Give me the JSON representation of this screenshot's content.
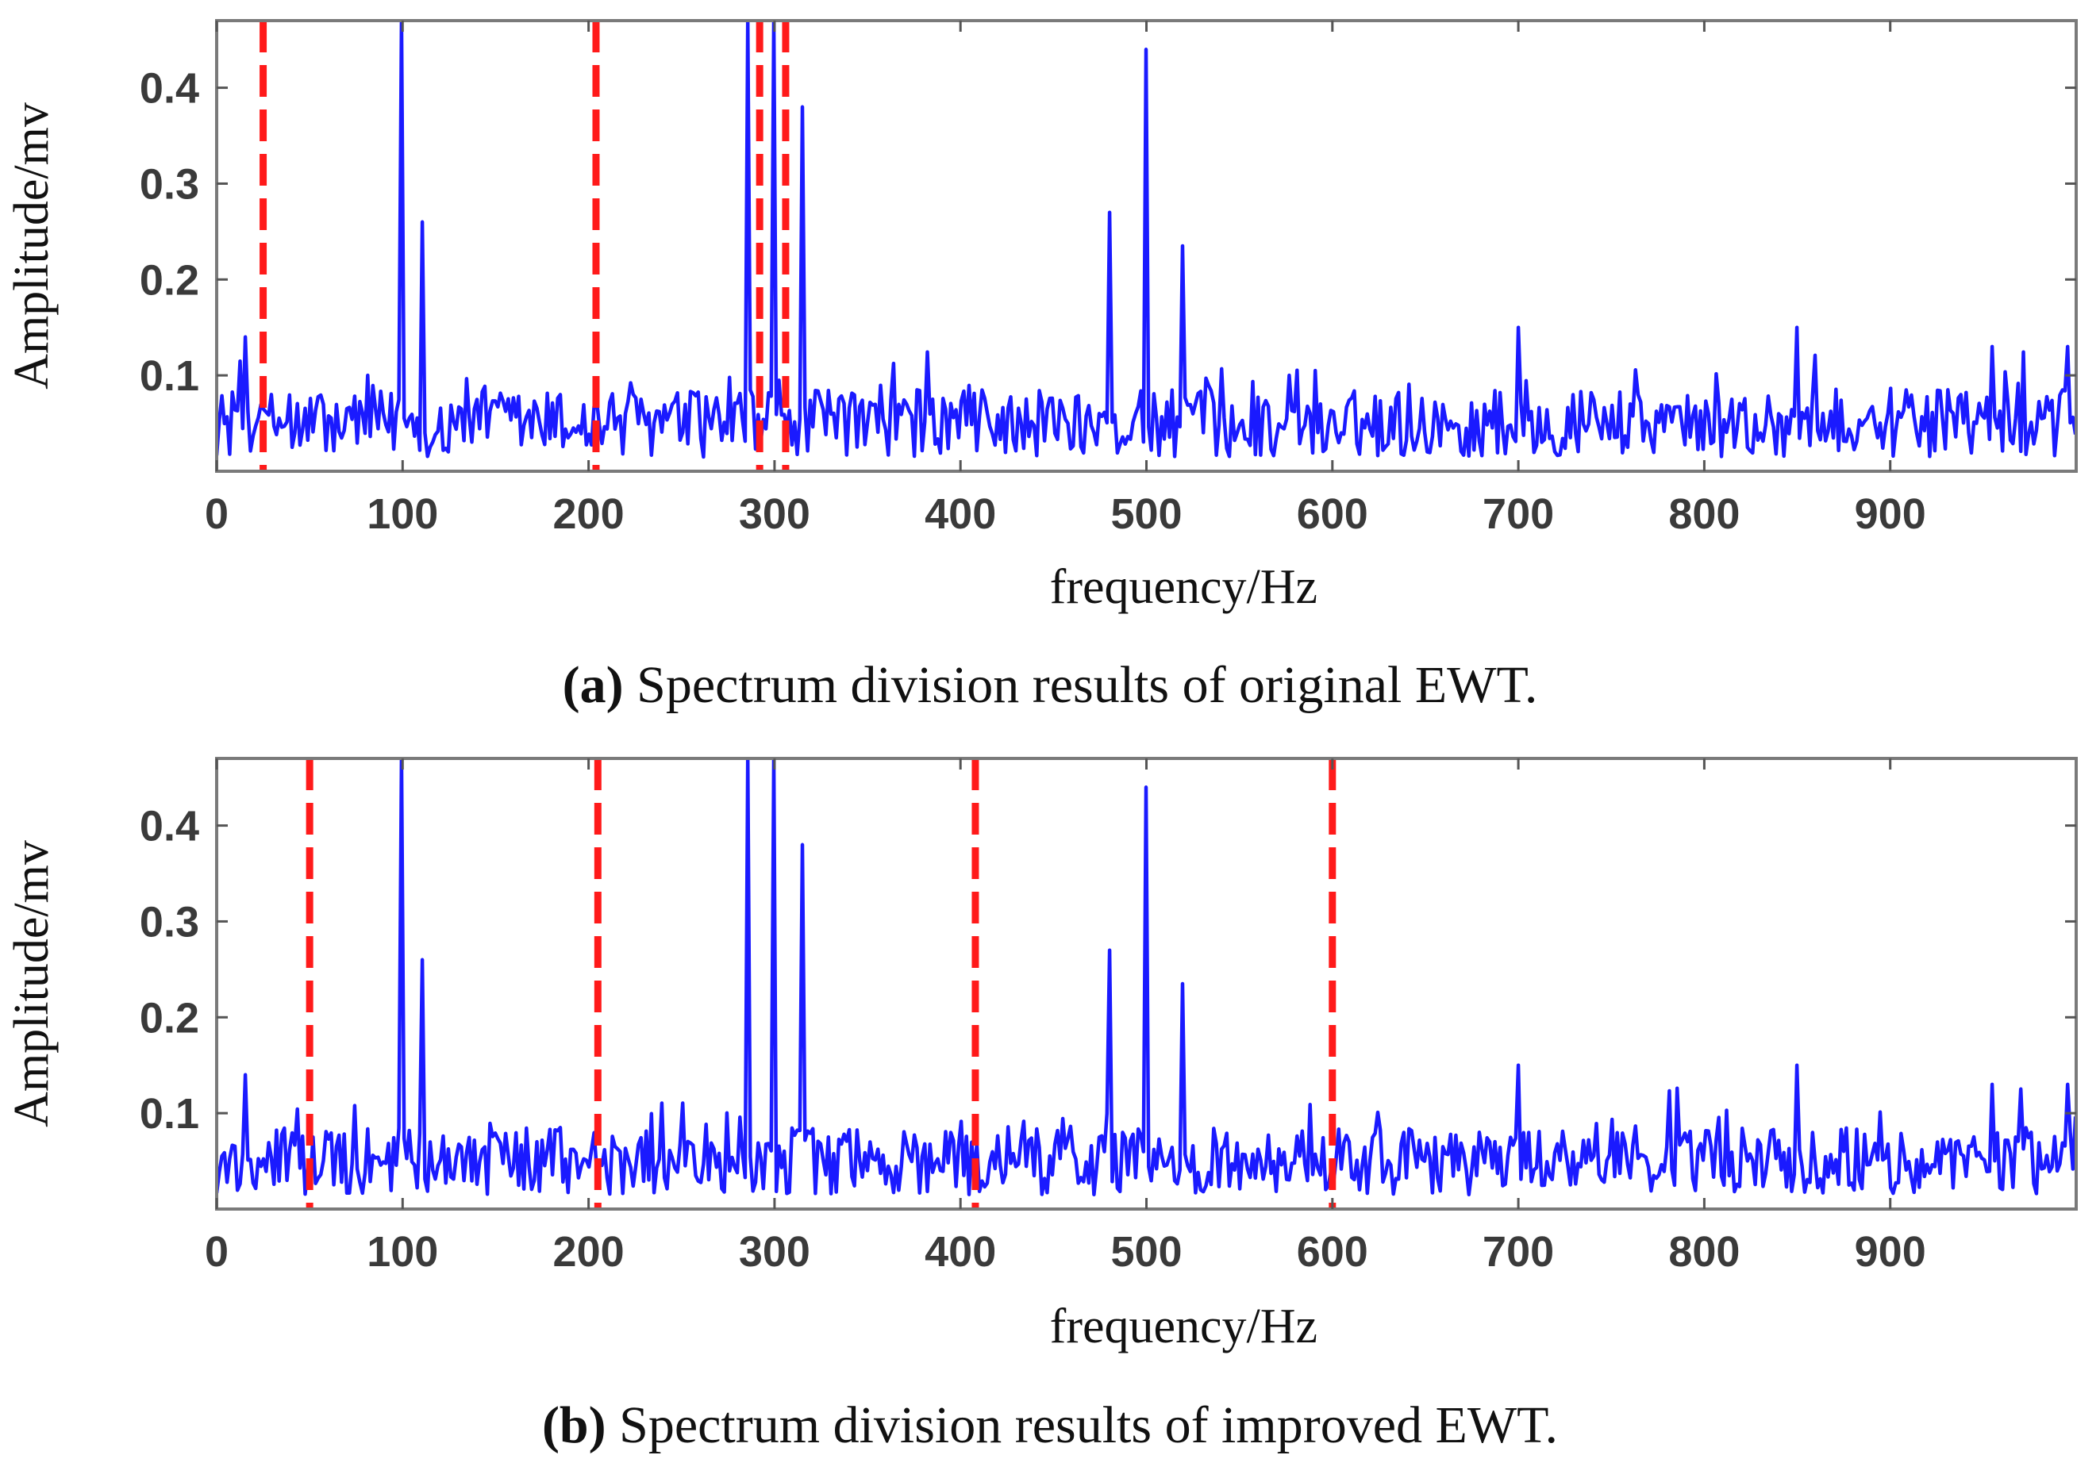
{
  "chart_data": [
    {
      "type": "line",
      "panel_label": "(a)",
      "caption": "Spectrum division results of original EWT.",
      "xlabel": "frequency/Hz",
      "ylabel": "Amplitude/mv",
      "xlim": [
        0,
        1000
      ],
      "ylim": [
        0,
        0.47
      ],
      "xticks": [
        0,
        100,
        200,
        300,
        400,
        500,
        600,
        700,
        800,
        900
      ],
      "yticks": [
        0.1,
        0.2,
        0.3,
        0.4
      ],
      "xtick_labels": [
        "0",
        "100",
        "200",
        "300",
        "400",
        "500",
        "600",
        "700",
        "800",
        "900"
      ],
      "ytick_labels": [
        "0.1",
        "0.2",
        "0.3",
        "0.4"
      ],
      "series": [
        {
          "name": "spectrum",
          "color": "#1a1aff",
          "noise_floor": 0.05,
          "peaks": [
            [
              100,
              0.47
            ],
            [
              110,
              0.26
            ],
            [
              286,
              0.47
            ],
            [
              300,
              0.47
            ],
            [
              315,
              0.38
            ],
            [
              480,
              0.27
            ],
            [
              500,
              0.44
            ],
            [
              520,
              0.235
            ],
            [
              15,
              0.14
            ],
            [
              700,
              0.15
            ],
            [
              850,
              0.15
            ],
            [
              955,
              0.13
            ],
            [
              995,
              0.13
            ]
          ]
        }
      ],
      "boundaries": [
        25,
        204,
        292,
        306
      ],
      "boundary_color": "#ff1a1a"
    },
    {
      "type": "line",
      "panel_label": "(b)",
      "caption": "Spectrum division results of improved EWT.",
      "xlabel": "frequency/Hz",
      "ylabel": "Amplitude/mv",
      "xlim": [
        0,
        1000
      ],
      "ylim": [
        0,
        0.47
      ],
      "xticks": [
        0,
        100,
        200,
        300,
        400,
        500,
        600,
        700,
        800,
        900
      ],
      "yticks": [
        0.1,
        0.2,
        0.3,
        0.4
      ],
      "xtick_labels": [
        "0",
        "100",
        "200",
        "300",
        "400",
        "500",
        "600",
        "700",
        "800",
        "900"
      ],
      "ytick_labels": [
        "0.1",
        "0.2",
        "0.3",
        "0.4"
      ],
      "series": [
        {
          "name": "spectrum",
          "color": "#1a1aff",
          "noise_floor": 0.05,
          "peaks": [
            [
              100,
              0.47
            ],
            [
              110,
              0.26
            ],
            [
              286,
              0.47
            ],
            [
              300,
              0.47
            ],
            [
              315,
              0.38
            ],
            [
              480,
              0.27
            ],
            [
              500,
              0.44
            ],
            [
              520,
              0.235
            ],
            [
              15,
              0.14
            ],
            [
              700,
              0.15
            ],
            [
              850,
              0.15
            ],
            [
              955,
              0.13
            ],
            [
              995,
              0.13
            ]
          ]
        }
      ],
      "boundaries": [
        50,
        205,
        408,
        600
      ],
      "boundary_color": "#ff1a1a"
    }
  ]
}
